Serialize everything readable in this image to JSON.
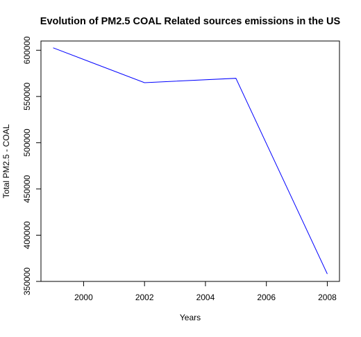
{
  "chart_data": {
    "type": "line",
    "title": "Evolution of PM2.5 COAL Related sources emissions in the US",
    "xlabel": "Years",
    "ylabel": "Total PM2.5 - COAL",
    "x": [
      1999,
      2002,
      2005,
      2008
    ],
    "series": [
      {
        "values": [
          602624,
          564940,
          569654,
          358083
        ],
        "color": "#0000ff"
      }
    ],
    "xlim": [
      1998.6,
      2008.4
    ],
    "ylim": [
      350000,
      610000
    ],
    "xticks": [
      2000,
      2002,
      2004,
      2006,
      2008
    ],
    "yticks": [
      350000,
      400000,
      450000,
      500000,
      550000,
      600000
    ],
    "grid": false,
    "legend": "none"
  }
}
